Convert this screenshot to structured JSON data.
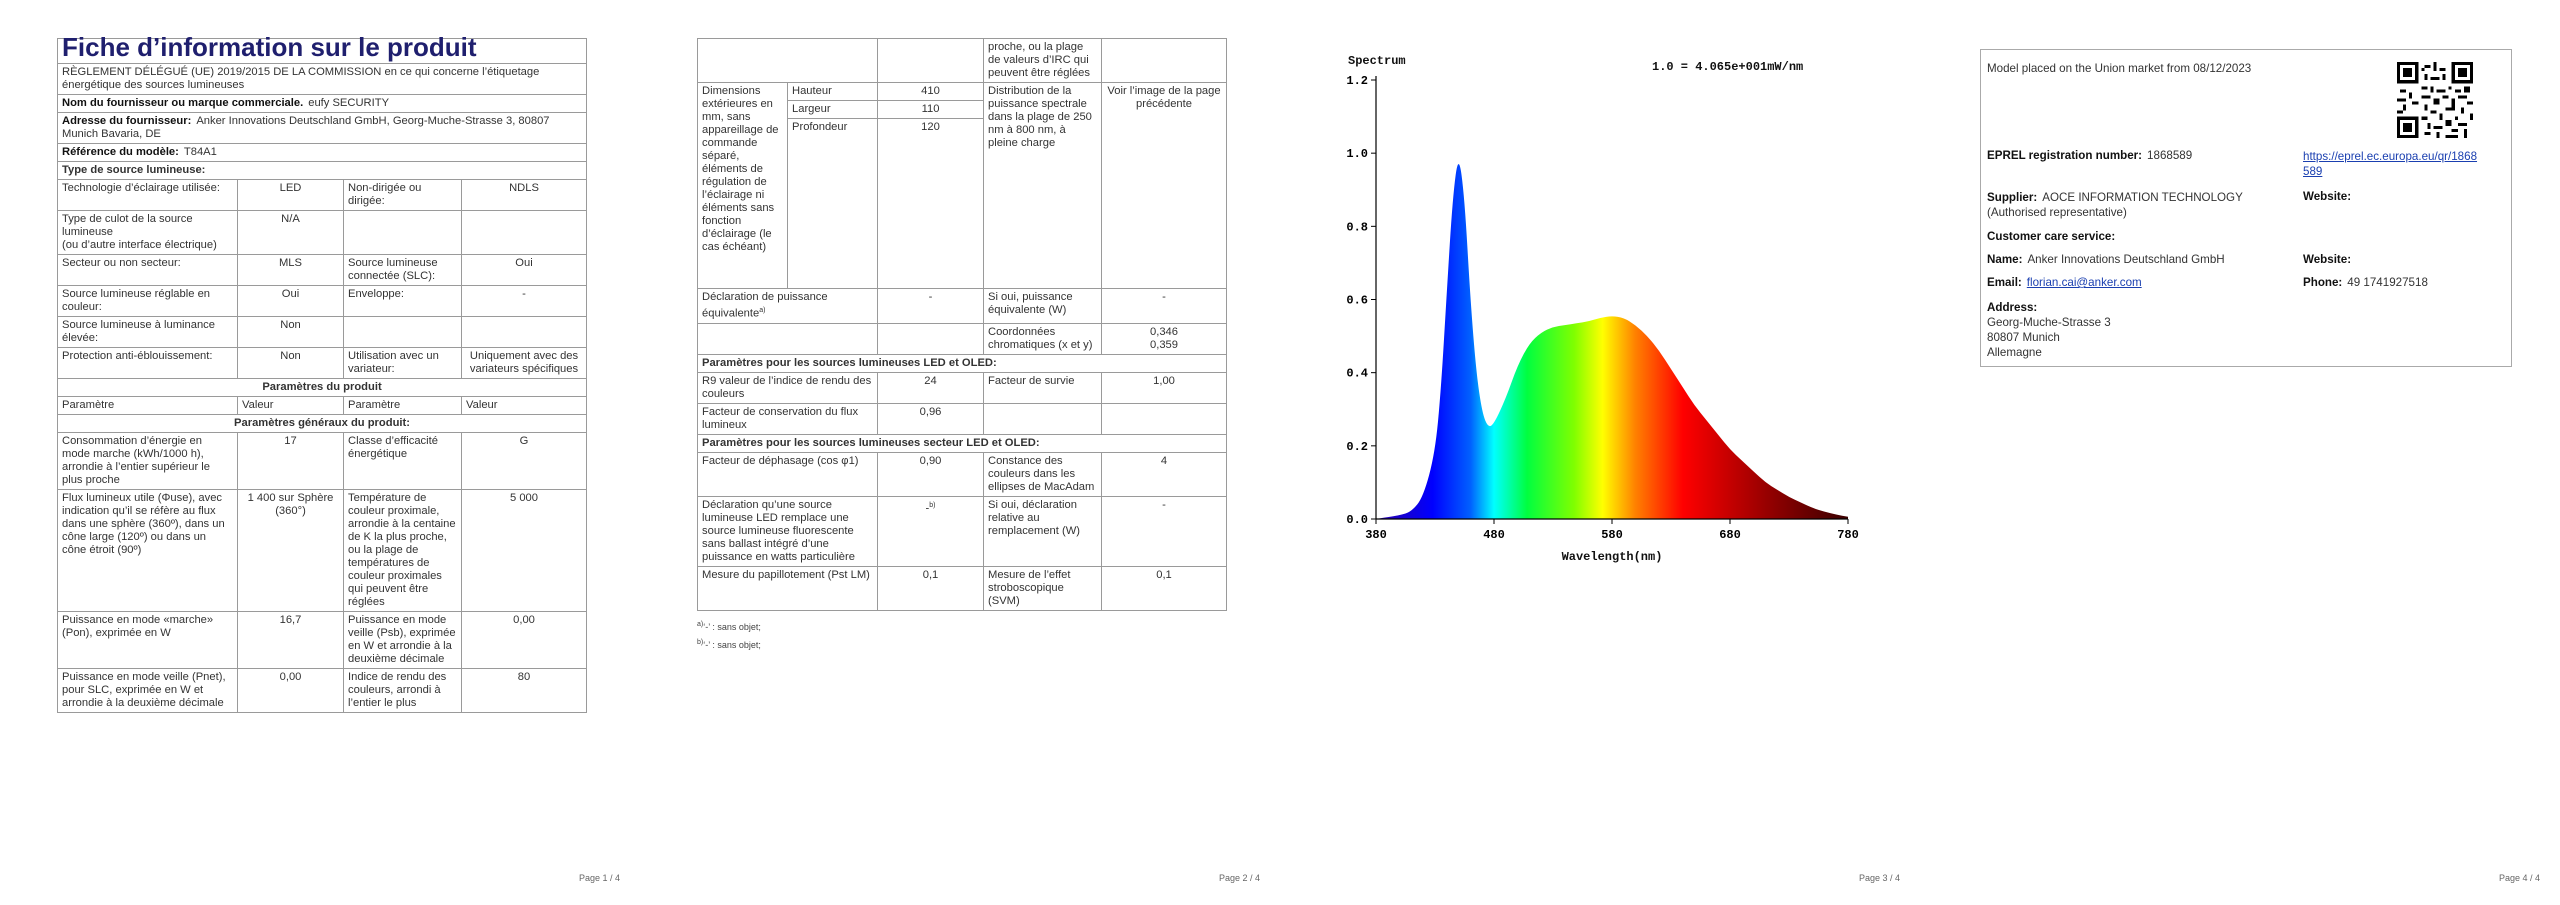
{
  "page1": {
    "title": "Fiche d’information sur le produit",
    "regulation": "RÈGLEMENT DÉLÉGUÉ (UE) 2019/2015 DE LA COMMISSION en ce qui concerne l’étiquetage énergétique des sources lumineuses",
    "supplier_name_label": "Nom du fournisseur ou marque commerciale.",
    "supplier_name_value": "eufy SECURITY",
    "supplier_address_label": "Adresse du fournisseur:",
    "supplier_address_value": "Anker Innovations Deutschland GmbH, Georg-Muche-Strasse 3, 80807 Munich Bavaria, DE",
    "model_label": "Référence du modèle:",
    "model_value": "T84A1",
    "light_source_type": "Type de source lumineuse:",
    "r1": {
      "a": "Technologie d’éclairage utilisée:",
      "b": "LED",
      "c": "Non-dirigée ou dirigée:",
      "d": "NDLS"
    },
    "r2": {
      "a": "Type de culot de la source lumineuse",
      "a2": "(ou d’autre interface électrique)",
      "b": "N/A"
    },
    "r3": {
      "a": "Secteur ou non secteur:",
      "b": "MLS",
      "c": "Source lumineuse connectée (SLC):",
      "d": "Oui"
    },
    "r4": {
      "a": "Source lumineuse réglable en couleur:",
      "b": "Oui",
      "c": "Enveloppe:",
      "d": "-"
    },
    "r5": {
      "a": "Source lumineuse à luminance élevée:",
      "b": "Non"
    },
    "r6": {
      "a": "Protection anti-éblouissement:",
      "b": "Non",
      "c": "Utilisation avec un variateur:",
      "d": "Uniquement avec des variateurs spécifiques"
    },
    "product_params": "Paramètres du produit",
    "h": {
      "a": "Paramètre",
      "b": "Valeur",
      "c": "Paramètre",
      "d": "Valeur"
    },
    "general_params": "Paramètres généraux du produit:",
    "g1": {
      "a": "Consommation d’énergie en mode marche (kWh/1000 h), arrondie à l’entier supérieur le plus proche",
      "b": "17",
      "c": "Classe d’efficacité énergétique",
      "d": "G"
    },
    "g2": {
      "a": "Flux lumineux utile (Φuse), avec indication qu’il se réfère au flux dans une sphère (360º), dans un cône large (120º) ou dans un cône étroit (90º)",
      "b": "1 400 sur Sphère (360°)",
      "c": "Température de couleur proximale, arrondie à la centaine de K la plus proche, ou la plage de températures de couleur proximales qui peuvent être réglées",
      "d": "5 000"
    },
    "g3": {
      "a": "Puissance en mode «marche» (Pon), exprimée en W",
      "b": "16,7",
      "c": "Puissance en mode veille (Psb), exprimée en W et arrondie à la deuxième décimale",
      "d": "0,00"
    },
    "g4": {
      "a": "Puissance en mode veille (Pnet), pour SLC, exprimée en W et arrondie à la deuxième décimale",
      "b": "0,00",
      "c": "Indice de rendu des couleurs, arrondi à l’entier le plus",
      "d": "80"
    },
    "page_num": "Page 1 / 4"
  },
  "page2": {
    "cont": "proche, ou la plage de valeurs d’IRC qui peuvent être réglées",
    "dims_label": "Dimensions extérieures en mm, sans appareillage de commande séparé, éléments de régulation de l’éclairage ni éléments sans fonction d’éclairage (le cas échéant)",
    "hauteur": "Hauteur",
    "hauteur_v": "410",
    "largeur": "Largeur",
    "largeur_v": "110",
    "profondeur": "Profondeur",
    "profondeur_v": "120",
    "spectral": "Distribution de la puissance spectrale dans la plage de 250 nm à 800 nm, à pleine charge",
    "spectral_v": "Voir l’image de la page précédente",
    "equiv_label": "Déclaration de puissance équivalente",
    "equiv_sup": "a)",
    "equiv_v": "-",
    "equiv_c": "Si oui, puissance équivalente (W)",
    "equiv_d": "-",
    "chroma_c": "Coordonnées chromatiques (x et y)",
    "chroma_d1": "0,346",
    "chroma_d2": "0,359",
    "led_section": "Paramètres pour les sources lumineuses LED et OLED:",
    "r9": {
      "a": "R9 valeur de l’indice de rendu des couleurs",
      "b": "24",
      "c": "Facteur de survie",
      "d": "1,00"
    },
    "flux": {
      "a": "Facteur de conservation du flux lumineux",
      "b": "0,96"
    },
    "mains_section": "Paramètres pour les sources lumineuses secteur LED et OLED:",
    "cos": {
      "a": "Facteur de déphasage (cos φ1)",
      "b": "0,90",
      "c": "Constance des couleurs dans les ellipses de MacAdam",
      "d": "4"
    },
    "decl": {
      "a": "Déclaration qu’une source lumineuse LED remplace une source lumineuse fluorescente sans ballast intégré d’une puissance en watts particulière",
      "b": "-",
      "b_sup": "b)",
      "c": "Si oui, déclaration relative au remplacement (W)",
      "d": "-"
    },
    "pst": {
      "a": "Mesure du papillotement (Pst LM)",
      "b": "0,1",
      "c": "Mesure de l’effet stroboscopique (SVM)",
      "d": "0,1"
    },
    "fn_a_mark": "a)",
    "fn_a": "‘-’ : sans objet;",
    "fn_b_mark": "b)",
    "fn_b": "‘-’ : sans objet;",
    "page_num": "Page 2 / 4"
  },
  "page3": {
    "chart_data": {
      "type": "area",
      "title": "Spectrum",
      "annotation": "1.0 = 4.065e+001mW/nm",
      "xlabel": "Wavelength(nm)",
      "ylabel": "",
      "xlim": [
        380,
        780
      ],
      "ylim": [
        0.0,
        1.2
      ],
      "x_ticks": [
        "380",
        "480",
        "580",
        "680",
        "780"
      ],
      "y_ticks": [
        "0.0",
        "0.2",
        "0.4",
        "0.6",
        "0.8",
        "1.0",
        "1.2"
      ],
      "grid": false,
      "x": [
        380,
        400,
        410,
        420,
        430,
        435,
        440,
        445,
        450,
        455,
        460,
        465,
        470,
        475,
        480,
        490,
        500,
        510,
        520,
        530,
        540,
        550,
        560,
        570,
        580,
        590,
        600,
        610,
        620,
        630,
        640,
        650,
        660,
        670,
        680,
        690,
        700,
        710,
        720,
        730,
        740,
        750,
        760,
        770,
        780
      ],
      "y": [
        0.0,
        0.01,
        0.02,
        0.06,
        0.18,
        0.35,
        0.62,
        0.88,
        1.0,
        0.88,
        0.6,
        0.4,
        0.29,
        0.25,
        0.26,
        0.33,
        0.42,
        0.48,
        0.51,
        0.525,
        0.53,
        0.535,
        0.54,
        0.55,
        0.555,
        0.55,
        0.53,
        0.5,
        0.46,
        0.41,
        0.36,
        0.31,
        0.27,
        0.23,
        0.19,
        0.16,
        0.13,
        0.1,
        0.08,
        0.06,
        0.045,
        0.03,
        0.02,
        0.012,
        0.006
      ]
    },
    "page_num": "Page 3 / 4"
  },
  "page4": {
    "placed": "Model placed on the Union market from 08/12/2023",
    "eprel_label": "EPREL registration number:",
    "eprel_value": "1868589",
    "eprel_link": "https://eprel.ec.europa.eu/qr/1868589",
    "supplier_label": "Supplier:",
    "supplier_value": "AOCE INFORMATION TECHNOLOGY (Authorised representative)",
    "website_label": "Website:",
    "customer_care": "Customer care service:",
    "name_label": "Name:",
    "name_value": "Anker Innovations Deutschland GmbH",
    "website2_label": "Website:",
    "email_label": "Email:",
    "email_value": "florian.cai@anker.com",
    "phone_label": "Phone:",
    "phone_value": "49 1741927518",
    "address_label": "Address:",
    "address_l1": "Georg-Muche-Strasse 3",
    "address_l2": "80807 Munich",
    "address_l3": "Allemagne",
    "page_num": "Page 4 / 4"
  }
}
